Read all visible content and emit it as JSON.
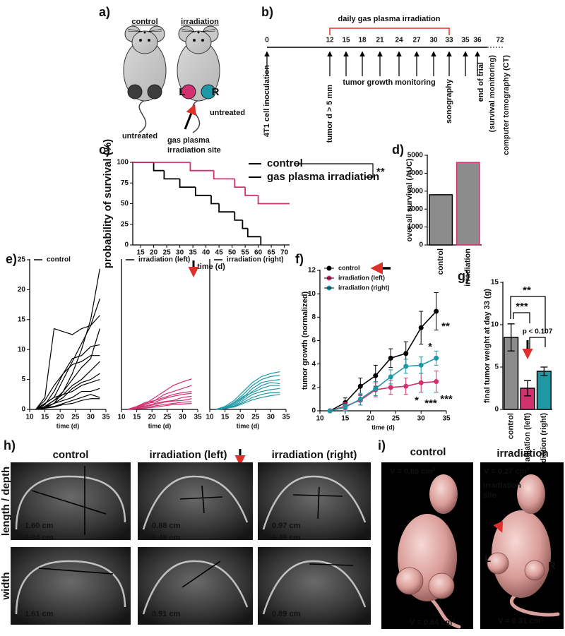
{
  "figure": {
    "a": {
      "label": "a)",
      "control": "control",
      "irradiation": "irradiation",
      "left": "L",
      "right": "R",
      "untreated_control": "untreated",
      "untreated_right": "untreated",
      "site": [
        "gas plasma",
        "irradiation site"
      ]
    },
    "b": {
      "label": "b)",
      "bracket": "daily gas plasma irradiation",
      "days": [
        0,
        12,
        15,
        18,
        21,
        24,
        27,
        30,
        33,
        35,
        36,
        72
      ],
      "monitoring": "tumor growth monitoring",
      "events": [
        "4T1 cell inoculation",
        "tumor d > 5 mm",
        "sonography",
        "end of trial",
        "(survival monitoring)",
        "computer tomography (CT)"
      ]
    },
    "h": {
      "label": "h)",
      "columns": [
        "control",
        "irradiation (left)",
        "irradiation (right)"
      ],
      "rows": [
        "length / depth",
        "width"
      ],
      "measurements": [
        [
          [
            "1.60 cm",
            "0.94 cm"
          ],
          [
            "0.88 cm",
            "0.48 cm"
          ],
          [
            "0.97 cm",
            "0.49 cm"
          ]
        ],
        [
          [
            "1.61 cm"
          ],
          [
            "0.91 cm"
          ],
          [
            "0.89 cm"
          ]
        ]
      ]
    },
    "i": {
      "label": "i)",
      "columns": [
        "control",
        "irradiation"
      ],
      "volumes": [
        [
          "V = 0.69 cm³",
          "V = 0.84 cm³"
        ],
        [
          "V = 0.27 cm³",
          "V = 0.31 cm³"
        ]
      ],
      "site": [
        "irradiation",
        "site"
      ],
      "left": "L",
      "right": "R"
    }
  },
  "chart_data": [
    {
      "type": "step",
      "panel_label": "c)",
      "x_label": "time (d)",
      "y_label": "probability of survival (%)",
      "xlim": [
        12,
        72
      ],
      "xticks": [
        15,
        20,
        25,
        30,
        35,
        40,
        45,
        50,
        55,
        60,
        65,
        70
      ],
      "ylim": [
        0,
        100
      ],
      "yticks": [
        0,
        25,
        50,
        75,
        100
      ],
      "series": [
        {
          "name": "control",
          "color": "#000000",
          "x": [
            12,
            20,
            24,
            30,
            36,
            42,
            45,
            51,
            54,
            56,
            61
          ],
          "values": [
            100,
            90,
            80,
            70,
            60,
            50,
            40,
            30,
            20,
            10,
            0
          ]
        },
        {
          "name": "gas plasma irradiation",
          "color": "#d3306f",
          "x": [
            12,
            34,
            43,
            51,
            55,
            60,
            72
          ],
          "values": [
            100,
            90,
            80,
            70,
            60,
            50,
            50
          ]
        }
      ],
      "annotation": "**"
    },
    {
      "type": "bar",
      "panel_label": "d)",
      "y_label": "over-all survival (AUC)",
      "categories": [
        "control",
        "irradiation"
      ],
      "values": [
        2800,
        4600
      ],
      "colors": [
        "#8c8c8c",
        "#8c8c8c"
      ],
      "edge_colors": [
        "#000000",
        "#d3306f"
      ],
      "ylim": [
        0,
        5000
      ],
      "yticks": [
        0,
        1000,
        2000,
        3000,
        4000,
        5000
      ]
    },
    {
      "type": "line",
      "panel_label": "e)",
      "x_label": "time (d)",
      "xlim": [
        10,
        35
      ],
      "xticks": [
        10,
        15,
        20,
        25,
        30,
        35
      ],
      "ylim": [
        0,
        25
      ],
      "yticks": [
        0,
        5,
        10,
        15,
        20,
        25
      ],
      "x": [
        12,
        15,
        18,
        21,
        24,
        27,
        30,
        33
      ],
      "series": [
        {
          "name": "control",
          "color": "#000000",
          "lines": [
            [
              0,
              0.5,
              1.5,
              3,
              6,
              10,
              15,
              23.5
            ],
            [
              0,
              1,
              2,
              5,
              8,
              11,
              14,
              18.5
            ],
            [
              0,
              2,
              13.5,
              13,
              12.5,
              13.5,
              14,
              15.7
            ],
            [
              0,
              0.8,
              3,
              6,
              8.5,
              9,
              10.5,
              10.8
            ],
            [
              0,
              0.3,
              1,
              3,
              5,
              7,
              8.5,
              13.5
            ],
            [
              0,
              1.5,
              4,
              6,
              7.5,
              8,
              9,
              9
            ],
            [
              0,
              0.5,
              1.5,
              2.5,
              4,
              5,
              6.5,
              8
            ],
            [
              0,
              0.2,
              1,
              2,
              3.5,
              4.5,
              5,
              6
            ],
            [
              0,
              1,
              2,
              2.5,
              3,
              4,
              4.5,
              5
            ],
            [
              0,
              0.5,
              1,
              1.5,
              2,
              3,
              3,
              3.5
            ],
            [
              0,
              0.3,
              0.5,
              1,
              1.5,
              2,
              2.5,
              2
            ],
            [
              0,
              0.2,
              0.4,
              0.8,
              1,
              1.5,
              1.8,
              1.8
            ]
          ]
        }
      ]
    },
    {
      "type": "line",
      "x_label": "time (d)",
      "xlim": [
        10,
        35
      ],
      "xticks": [
        10,
        15,
        20,
        25,
        30,
        35
      ],
      "ylim": [
        0,
        25
      ],
      "x": [
        12,
        15,
        18,
        21,
        24,
        27,
        30,
        33
      ],
      "series": [
        {
          "name": "irradiation (left)",
          "color": "#d3306f",
          "lines": [
            [
              0,
              0.3,
              1,
              2,
              3,
              4,
              4.6,
              5.1
            ],
            [
              0,
              0.5,
              1.2,
              1.5,
              2.5,
              3,
              3.5,
              4
            ],
            [
              0,
              0.2,
              0.8,
              1.5,
              2,
              2.5,
              2.8,
              3
            ],
            [
              0,
              0.5,
              1,
              1.2,
              1.8,
              2.2,
              2.5,
              2.7
            ],
            [
              0,
              0.3,
              0.6,
              1,
              1.3,
              1.5,
              2,
              2.2
            ],
            [
              0,
              0.2,
              0.5,
              0.8,
              1.2,
              1.4,
              1.5,
              1.8
            ],
            [
              0,
              0.1,
              0.3,
              0.6,
              0.8,
              1,
              1.2,
              1.3
            ],
            [
              0,
              0.1,
              0.2,
              0.4,
              0.6,
              0.8,
              0.9,
              1
            ]
          ]
        }
      ]
    },
    {
      "type": "line",
      "x_label": "time (d)",
      "xlim": [
        10,
        35
      ],
      "xticks": [
        10,
        15,
        20,
        25,
        30,
        35
      ],
      "ylim": [
        0,
        25
      ],
      "x": [
        12,
        15,
        18,
        21,
        24,
        27,
        30,
        33
      ],
      "series": [
        {
          "name": "irradiation (right)",
          "color": "#1f98a6",
          "lines": [
            [
              0,
              0.5,
              1.5,
              3,
              4.5,
              5.5,
              6,
              6.3
            ],
            [
              0,
              0.3,
              1.2,
              2.5,
              4,
              5,
              5.5,
              5.7
            ],
            [
              0,
              0.4,
              1,
              2,
              3.5,
              4.5,
              4.8,
              5
            ],
            [
              0,
              0.2,
              0.8,
              1.8,
              3,
              4,
              4.5,
              4.3
            ],
            [
              0,
              0.3,
              1,
              2.2,
              2.8,
              3.5,
              4,
              4
            ],
            [
              0,
              0.2,
              0.6,
              1.5,
              2.5,
              3,
              3.3,
              3.5
            ],
            [
              0,
              0.1,
              0.5,
              1.2,
              2,
              2.5,
              2.8,
              2.8
            ],
            [
              0,
              0.2,
              0.4,
              1,
              1.6,
              2,
              2.3,
              2.5
            ]
          ]
        }
      ]
    },
    {
      "type": "line",
      "panel_label": "f)",
      "x_label": "time (d)",
      "y_label": "tumor growth (normalized)",
      "xlim": [
        10,
        35
      ],
      "xticks": [
        10,
        15,
        20,
        25,
        30,
        35
      ],
      "ylim": [
        0,
        12
      ],
      "yticks": [
        0,
        2,
        4,
        6,
        8,
        10,
        12
      ],
      "x": [
        12,
        15,
        18,
        21,
        24,
        27,
        30,
        33
      ],
      "series": [
        {
          "name": "control",
          "color": "#000000",
          "values": [
            0,
            0.7,
            2.1,
            3.0,
            4.5,
            4.9,
            7.1,
            8.5
          ],
          "errors": [
            0,
            0.4,
            0.7,
            0.9,
            0.8,
            1.0,
            1.4,
            1.6
          ]
        },
        {
          "name": "irradiation (left)",
          "color": "#d3306f",
          "values": [
            0,
            0.4,
            0.9,
            1.8,
            2.0,
            2.1,
            2.4,
            2.5
          ],
          "errors": [
            0,
            0.3,
            0.4,
            0.6,
            0.6,
            0.7,
            0.8,
            0.9
          ]
        },
        {
          "name": "irradiation (right)",
          "color": "#1f98a6",
          "values": [
            0,
            0.3,
            1.0,
            1.9,
            2.9,
            3.8,
            3.9,
            4.5
          ],
          "errors": [
            0,
            0.3,
            0.5,
            0.6,
            0.6,
            0.6,
            0.7,
            0.6
          ]
        }
      ],
      "annotations": [
        {
          "text": "*",
          "color": "#d3306f"
        },
        {
          "text": "***",
          "color": "#d3306f"
        },
        {
          "text": "***",
          "color": "#d3306f"
        },
        {
          "text": "*",
          "color": "#1f98a6"
        },
        {
          "text": "**",
          "color": "#1f98a6"
        }
      ]
    },
    {
      "type": "bar",
      "panel_label": "g)",
      "y_label": "final tumor weight at day 33 (g)",
      "categories": [
        "control",
        "irradiation (left)",
        "irradiation (right)"
      ],
      "values": [
        8.5,
        2.5,
        4.5
      ],
      "errors": [
        1.6,
        0.9,
        0.5
      ],
      "colors": [
        "#8c8c8c",
        "#d3306f",
        "#1f98a6"
      ],
      "edge_colors": [
        "#000000",
        "#000000",
        "#000000"
      ],
      "ylim": [
        0,
        15
      ],
      "yticks": [
        0,
        5,
        10,
        15
      ],
      "annotations": [
        {
          "text": "**"
        },
        {
          "text": "***"
        },
        {
          "text": "p < 0.107"
        }
      ]
    }
  ]
}
